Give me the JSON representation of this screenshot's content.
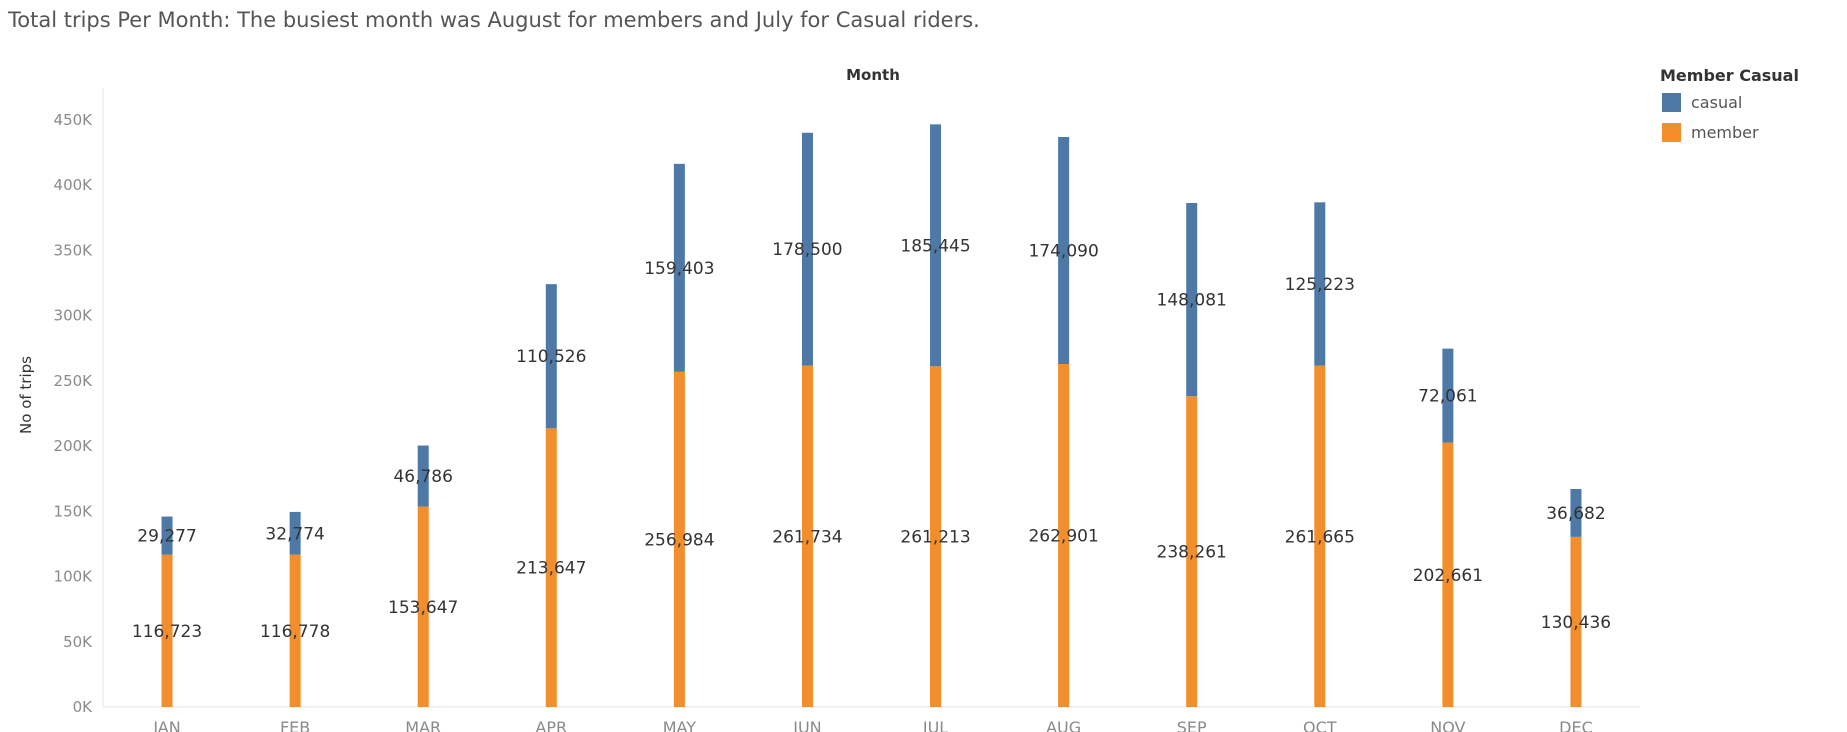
{
  "title": "Total trips Per Month:  The busiest month was August for members and July for Casual riders.",
  "chart_data": {
    "type": "bar",
    "stacked": true,
    "title": "Total trips Per Month:  The busiest month was August for members and July for Casual riders.",
    "column_header": "Month",
    "xlabel": "",
    "ylabel": "No of trips",
    "categories": [
      "JAN",
      "FEB",
      "MAR",
      "APR",
      "MAY",
      "JUN",
      "JUL",
      "AUG",
      "SEP",
      "OCT",
      "NOV",
      "DEC"
    ],
    "series": [
      {
        "name": "member",
        "color": "#f28e2b",
        "values": [
          116723,
          116778,
          153647,
          213647,
          256984,
          261734,
          261213,
          262901,
          238261,
          261665,
          202661,
          130436
        ],
        "labels": [
          "116,723",
          "116,778",
          "153,647",
          "213,647",
          "256,984",
          "261,734",
          "261,213",
          "262,901",
          "238,261",
          "261,665",
          "202,661",
          "130,436"
        ]
      },
      {
        "name": "casual",
        "color": "#4e79a7",
        "values": [
          29277,
          32774,
          46786,
          110526,
          159403,
          178500,
          185445,
          174090,
          148081,
          125223,
          72061,
          36682
        ],
        "labels": [
          "29,277",
          "32,774",
          "46,786",
          "110,526",
          "159,403",
          "178,500",
          "185,445",
          "174,090",
          "148,081",
          "125,223",
          "72,061",
          "36,682"
        ]
      }
    ],
    "ylim": [
      0,
      460000
    ],
    "y_ticks": [
      0,
      50000,
      100000,
      150000,
      200000,
      250000,
      300000,
      350000,
      400000,
      450000
    ],
    "y_tick_labels": [
      "0K",
      "50K",
      "100K",
      "150K",
      "200K",
      "250K",
      "300K",
      "350K",
      "400K",
      "450K"
    ],
    "grid": false,
    "legend": {
      "title": "Member Casual",
      "position": "top-right",
      "entries": [
        {
          "name": "casual",
          "color": "#4e79a7"
        },
        {
          "name": "member",
          "color": "#f28e2b"
        }
      ]
    }
  }
}
